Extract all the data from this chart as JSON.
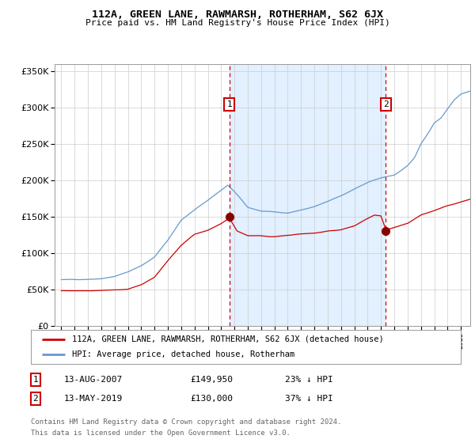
{
  "title": "112A, GREEN LANE, RAWMARSH, ROTHERHAM, S62 6JX",
  "subtitle": "Price paid vs. HM Land Registry's House Price Index (HPI)",
  "legend_line1": "112A, GREEN LANE, RAWMARSH, ROTHERHAM, S62 6JX (detached house)",
  "legend_line2": "HPI: Average price, detached house, Rotherham",
  "annotation1_date": "13-AUG-2007",
  "annotation1_price": "£149,950",
  "annotation1_pct": "23% ↓ HPI",
  "annotation1_year": 2007.62,
  "annotation1_value": 149950,
  "annotation2_date": "13-MAY-2019",
  "annotation2_price": "£130,000",
  "annotation2_pct": "37% ↓ HPI",
  "annotation2_year": 2019.37,
  "annotation2_value": 130000,
  "footer_line1": "Contains HM Land Registry data © Crown copyright and database right 2024.",
  "footer_line2": "This data is licensed under the Open Government Licence v3.0.",
  "hpi_color": "#6699cc",
  "price_color": "#cc0000",
  "shade_color": "#ddeeff",
  "plot_bg": "#ffffff",
  "grid_color": "#cccccc",
  "ylim": [
    0,
    360000
  ],
  "yticks": [
    0,
    50000,
    100000,
    150000,
    200000,
    250000,
    300000,
    350000
  ],
  "xlim_start": 1994.5,
  "xlim_end": 2025.7,
  "shade_start": 2007.62,
  "shade_end": 2019.37,
  "hpi_anchors_x": [
    1995,
    1996,
    1997,
    1998,
    1999,
    2000,
    2001,
    2002,
    2003,
    2004,
    2005,
    2006,
    2007.0,
    2007.5,
    2008.0,
    2009,
    2010,
    2011,
    2012,
    2013,
    2014,
    2015,
    2016,
    2017,
    2018,
    2019,
    2020,
    2021.0,
    2021.5,
    2022.0,
    2022.5,
    2023.0,
    2023.5,
    2024.0,
    2024.5,
    2025.0,
    2025.7
  ],
  "hpi_anchors_y": [
    63000,
    63500,
    65000,
    67000,
    70000,
    76000,
    85000,
    97000,
    120000,
    148000,
    162000,
    174000,
    188000,
    195000,
    185000,
    163000,
    158000,
    157000,
    156000,
    160000,
    164000,
    170000,
    178000,
    188000,
    196000,
    202000,
    206000,
    218000,
    228000,
    248000,
    262000,
    278000,
    285000,
    298000,
    310000,
    318000,
    322000
  ],
  "price_anchors_x": [
    1995,
    1996,
    1997,
    1998,
    1999,
    2000,
    2001,
    2002,
    2003,
    2004,
    2005,
    2006,
    2007.0,
    2007.62,
    2008.2,
    2009,
    2010,
    2011,
    2012,
    2013,
    2014,
    2015,
    2016,
    2017,
    2018.0,
    2018.5,
    2019.0,
    2019.37,
    2019.8,
    2020,
    2021,
    2022,
    2023,
    2024,
    2025.0,
    2025.7
  ],
  "price_anchors_y": [
    48000,
    48500,
    49500,
    50500,
    51000,
    52000,
    58000,
    68000,
    90000,
    112000,
    127000,
    133000,
    142000,
    149950,
    132000,
    126000,
    126000,
    125000,
    126000,
    128000,
    129000,
    131000,
    133000,
    138000,
    148000,
    152000,
    150000,
    130000,
    132000,
    133000,
    138000,
    150000,
    156000,
    162000,
    168000,
    172000
  ]
}
